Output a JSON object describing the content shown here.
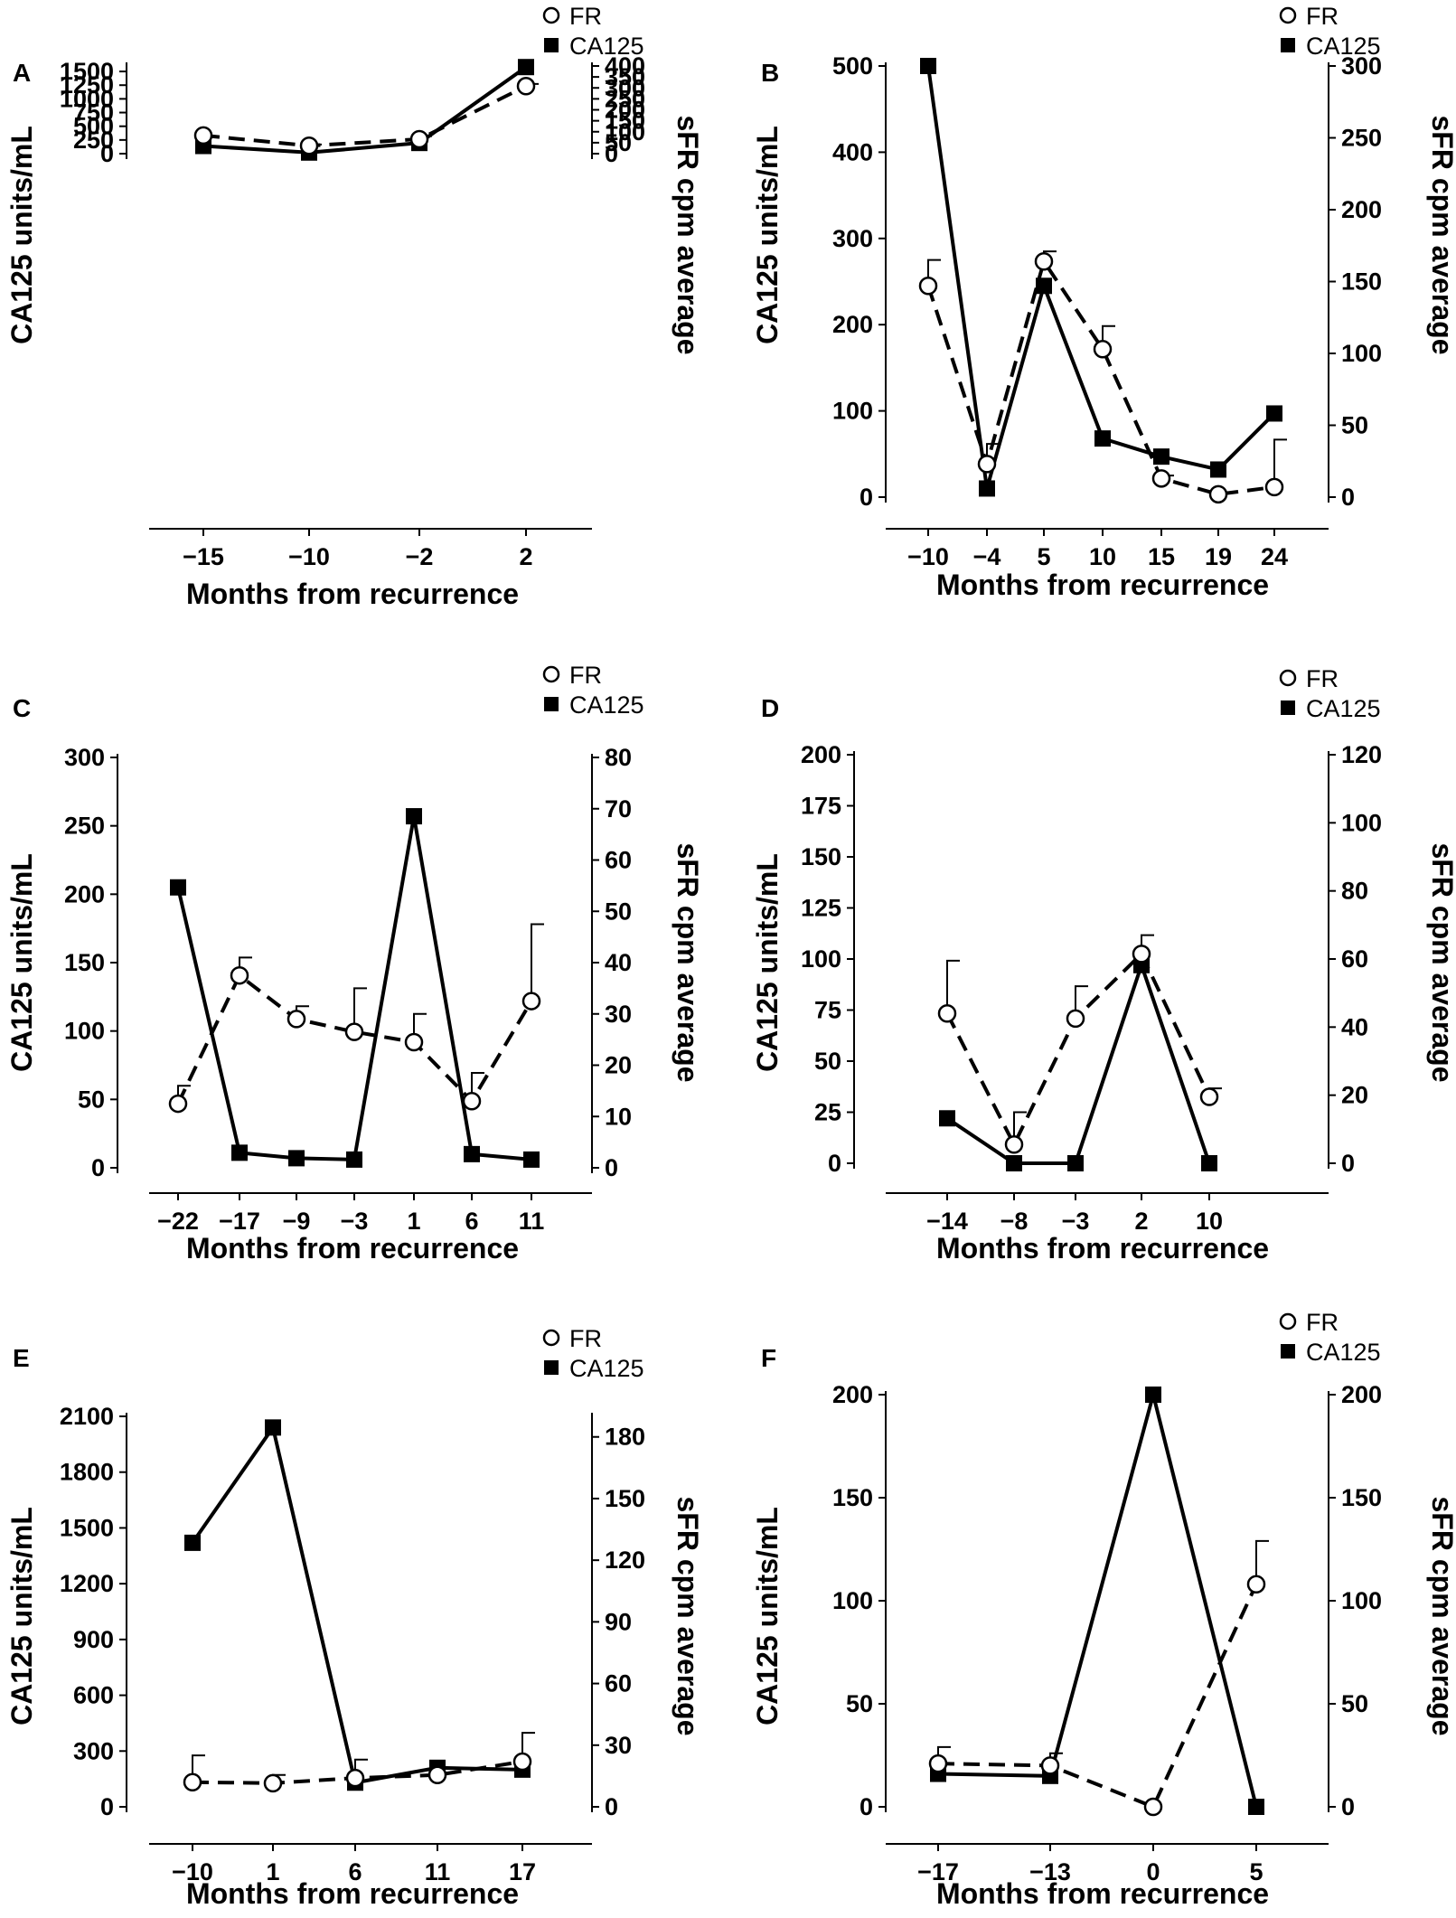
{
  "legend": {
    "fr": "FR",
    "ca125": "CA125"
  },
  "chart_data": [
    {
      "type": "line",
      "panel": "A",
      "xlabel": "Months from recurrence",
      "ylabel": "CA125 units/mL",
      "y2label": "sFR cpm average",
      "categories": [
        "−15",
        "−10",
        "−2",
        "2"
      ],
      "ylim": [
        0,
        1600
      ],
      "yticks": [
        0,
        250,
        500,
        750,
        1000,
        1250,
        1500
      ],
      "y2lim": [
        0,
        400
      ],
      "y2ticks": [
        0,
        50,
        100,
        150,
        200,
        250,
        300,
        350,
        400
      ],
      "series": [
        {
          "name": "CA125",
          "axis": "left",
          "marker": "filled-square",
          "values": [
            140,
            20,
            195,
            1580
          ]
        },
        {
          "name": "FR",
          "axis": "right",
          "marker": "open-circle",
          "values": [
            83,
            36,
            66,
            308
          ],
          "error_upper": [
            0,
            6,
            14,
            10
          ]
        }
      ]
    },
    {
      "type": "line",
      "panel": "B",
      "xlabel": "Months from recurrence",
      "ylabel": "CA125 units/mL",
      "y2label": "sFR cpm average",
      "categories": [
        "−10",
        "−4",
        "5",
        "10",
        "15",
        "19",
        "24"
      ],
      "ylim": [
        0,
        500
      ],
      "yticks": [
        0,
        100,
        200,
        300,
        400,
        500
      ],
      "y2lim": [
        0,
        300
      ],
      "y2ticks": [
        0,
        50,
        100,
        150,
        200,
        250,
        300
      ],
      "series": [
        {
          "name": "CA125",
          "axis": "left",
          "marker": "filled-square",
          "values": [
            500,
            10,
            245,
            68,
            47,
            32,
            97
          ]
        },
        {
          "name": "FR",
          "axis": "right",
          "marker": "open-circle",
          "values": [
            147,
            23,
            164,
            103,
            13,
            2,
            7
          ],
          "error_upper": [
            18,
            14,
            7,
            16,
            2,
            1,
            33
          ]
        }
      ]
    },
    {
      "type": "line",
      "panel": "C",
      "xlabel": "Months from recurrence",
      "ylabel": "CA125 units/mL",
      "y2label": "sFR cpm average",
      "categories": [
        "−22",
        "−17",
        "−9",
        "−3",
        "1",
        "6",
        "11"
      ],
      "ylim": [
        0,
        300
      ],
      "yticks": [
        0,
        50,
        100,
        150,
        200,
        250,
        300
      ],
      "y2lim": [
        0,
        80
      ],
      "y2ticks": [
        0,
        10,
        20,
        30,
        40,
        50,
        60,
        70,
        80
      ],
      "series": [
        {
          "name": "CA125",
          "axis": "left",
          "marker": "filled-square",
          "values": [
            205,
            11,
            7,
            6,
            257,
            10,
            6
          ]
        },
        {
          "name": "FR",
          "axis": "right",
          "marker": "open-circle",
          "values": [
            12.5,
            37.5,
            29,
            26.5,
            24.5,
            13,
            32.5
          ],
          "error_upper": [
            3.5,
            3.5,
            2.5,
            8.5,
            5.5,
            5.5,
            15
          ]
        }
      ]
    },
    {
      "type": "line",
      "panel": "D",
      "xlabel": "Months from recurrence",
      "ylabel": "CA125 units/mL",
      "y2label": "sFR cpm average",
      "categories": [
        "−14",
        "−8",
        "−3",
        "2",
        "10"
      ],
      "ylim": [
        0,
        200
      ],
      "yticks": [
        0,
        25,
        50,
        75,
        100,
        125,
        150,
        175,
        200
      ],
      "y2lim": [
        0,
        120
      ],
      "y2ticks": [
        0,
        20,
        40,
        60,
        80,
        100,
        120
      ],
      "series": [
        {
          "name": "CA125",
          "axis": "left",
          "marker": "filled-square",
          "values": [
            22,
            0,
            0,
            97,
            0
          ]
        },
        {
          "name": "FR",
          "axis": "right",
          "marker": "open-circle",
          "values": [
            44,
            5.5,
            42.5,
            61.5,
            19.5
          ],
          "error_upper": [
            15.5,
            9.5,
            9.5,
            5.5,
            2.5
          ]
        }
      ]
    },
    {
      "type": "line",
      "panel": "E",
      "xlabel": "Months from recurrence",
      "ylabel": "CA125 units/mL",
      "y2label": "sFR cpm average",
      "categories": [
        "−10",
        "1",
        "6",
        "11",
        "17"
      ],
      "ylim": [
        0,
        2100
      ],
      "yticks": [
        0,
        300,
        600,
        900,
        1200,
        1500,
        1800,
        2100
      ],
      "y2lim": [
        0,
        190
      ],
      "y2ticks": [
        0,
        30,
        60,
        90,
        120,
        150,
        180
      ],
      "series": [
        {
          "name": "CA125",
          "axis": "left",
          "marker": "filled-square",
          "values": [
            1420,
            2040,
            130,
            210,
            200
          ]
        },
        {
          "name": "FR",
          "axis": "right",
          "marker": "open-circle",
          "values": [
            12,
            11.5,
            14,
            15.5,
            22
          ],
          "error_upper": [
            13,
            4,
            9,
            3,
            14
          ]
        }
      ]
    },
    {
      "type": "line",
      "panel": "F",
      "xlabel": "Months from recurrence",
      "ylabel": "CA125 units/mL",
      "y2label": "sFR cpm average",
      "categories": [
        "−17",
        "−13",
        "0",
        "5"
      ],
      "ylim": [
        0,
        200
      ],
      "yticks": [
        0,
        50,
        100,
        150,
        200
      ],
      "y2lim": [
        0,
        200
      ],
      "y2ticks": [
        0,
        50,
        100,
        150,
        200
      ],
      "series": [
        {
          "name": "CA125",
          "axis": "left",
          "marker": "filled-square",
          "values": [
            16,
            15,
            200,
            0
          ]
        },
        {
          "name": "FR",
          "axis": "right",
          "marker": "open-circle",
          "values": [
            21,
            20,
            0,
            108
          ],
          "error_upper": [
            8,
            6,
            0,
            21
          ]
        }
      ]
    }
  ]
}
